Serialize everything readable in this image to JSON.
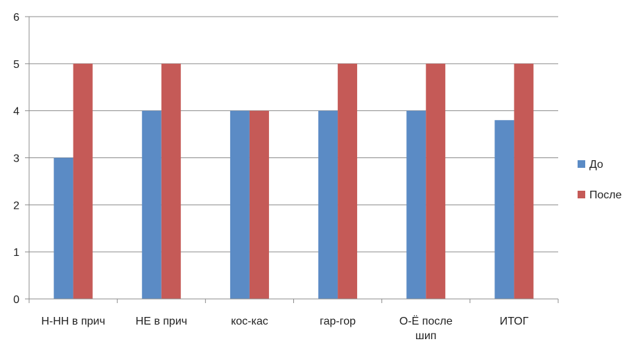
{
  "chart_data": {
    "type": "bar",
    "categories": [
      "Н-НН в прич",
      "НЕ в прич",
      "кос-кас",
      "гар-гор",
      "О-Ё после шип",
      "ИТОГ"
    ],
    "series": [
      {
        "name": "До",
        "values": [
          3,
          4,
          4,
          4,
          4,
          3.8
        ],
        "color": "#5b8bc5"
      },
      {
        "name": "После",
        "values": [
          5,
          5,
          4,
          5,
          5,
          5
        ],
        "color": "#c55a57"
      }
    ],
    "yticks": [
      "0",
      "1",
      "2",
      "3",
      "4",
      "5",
      "6"
    ],
    "ylim": [
      0,
      6
    ],
    "grid": true,
    "legend_position": "right",
    "title": "",
    "xlabel": "",
    "ylabel": ""
  }
}
